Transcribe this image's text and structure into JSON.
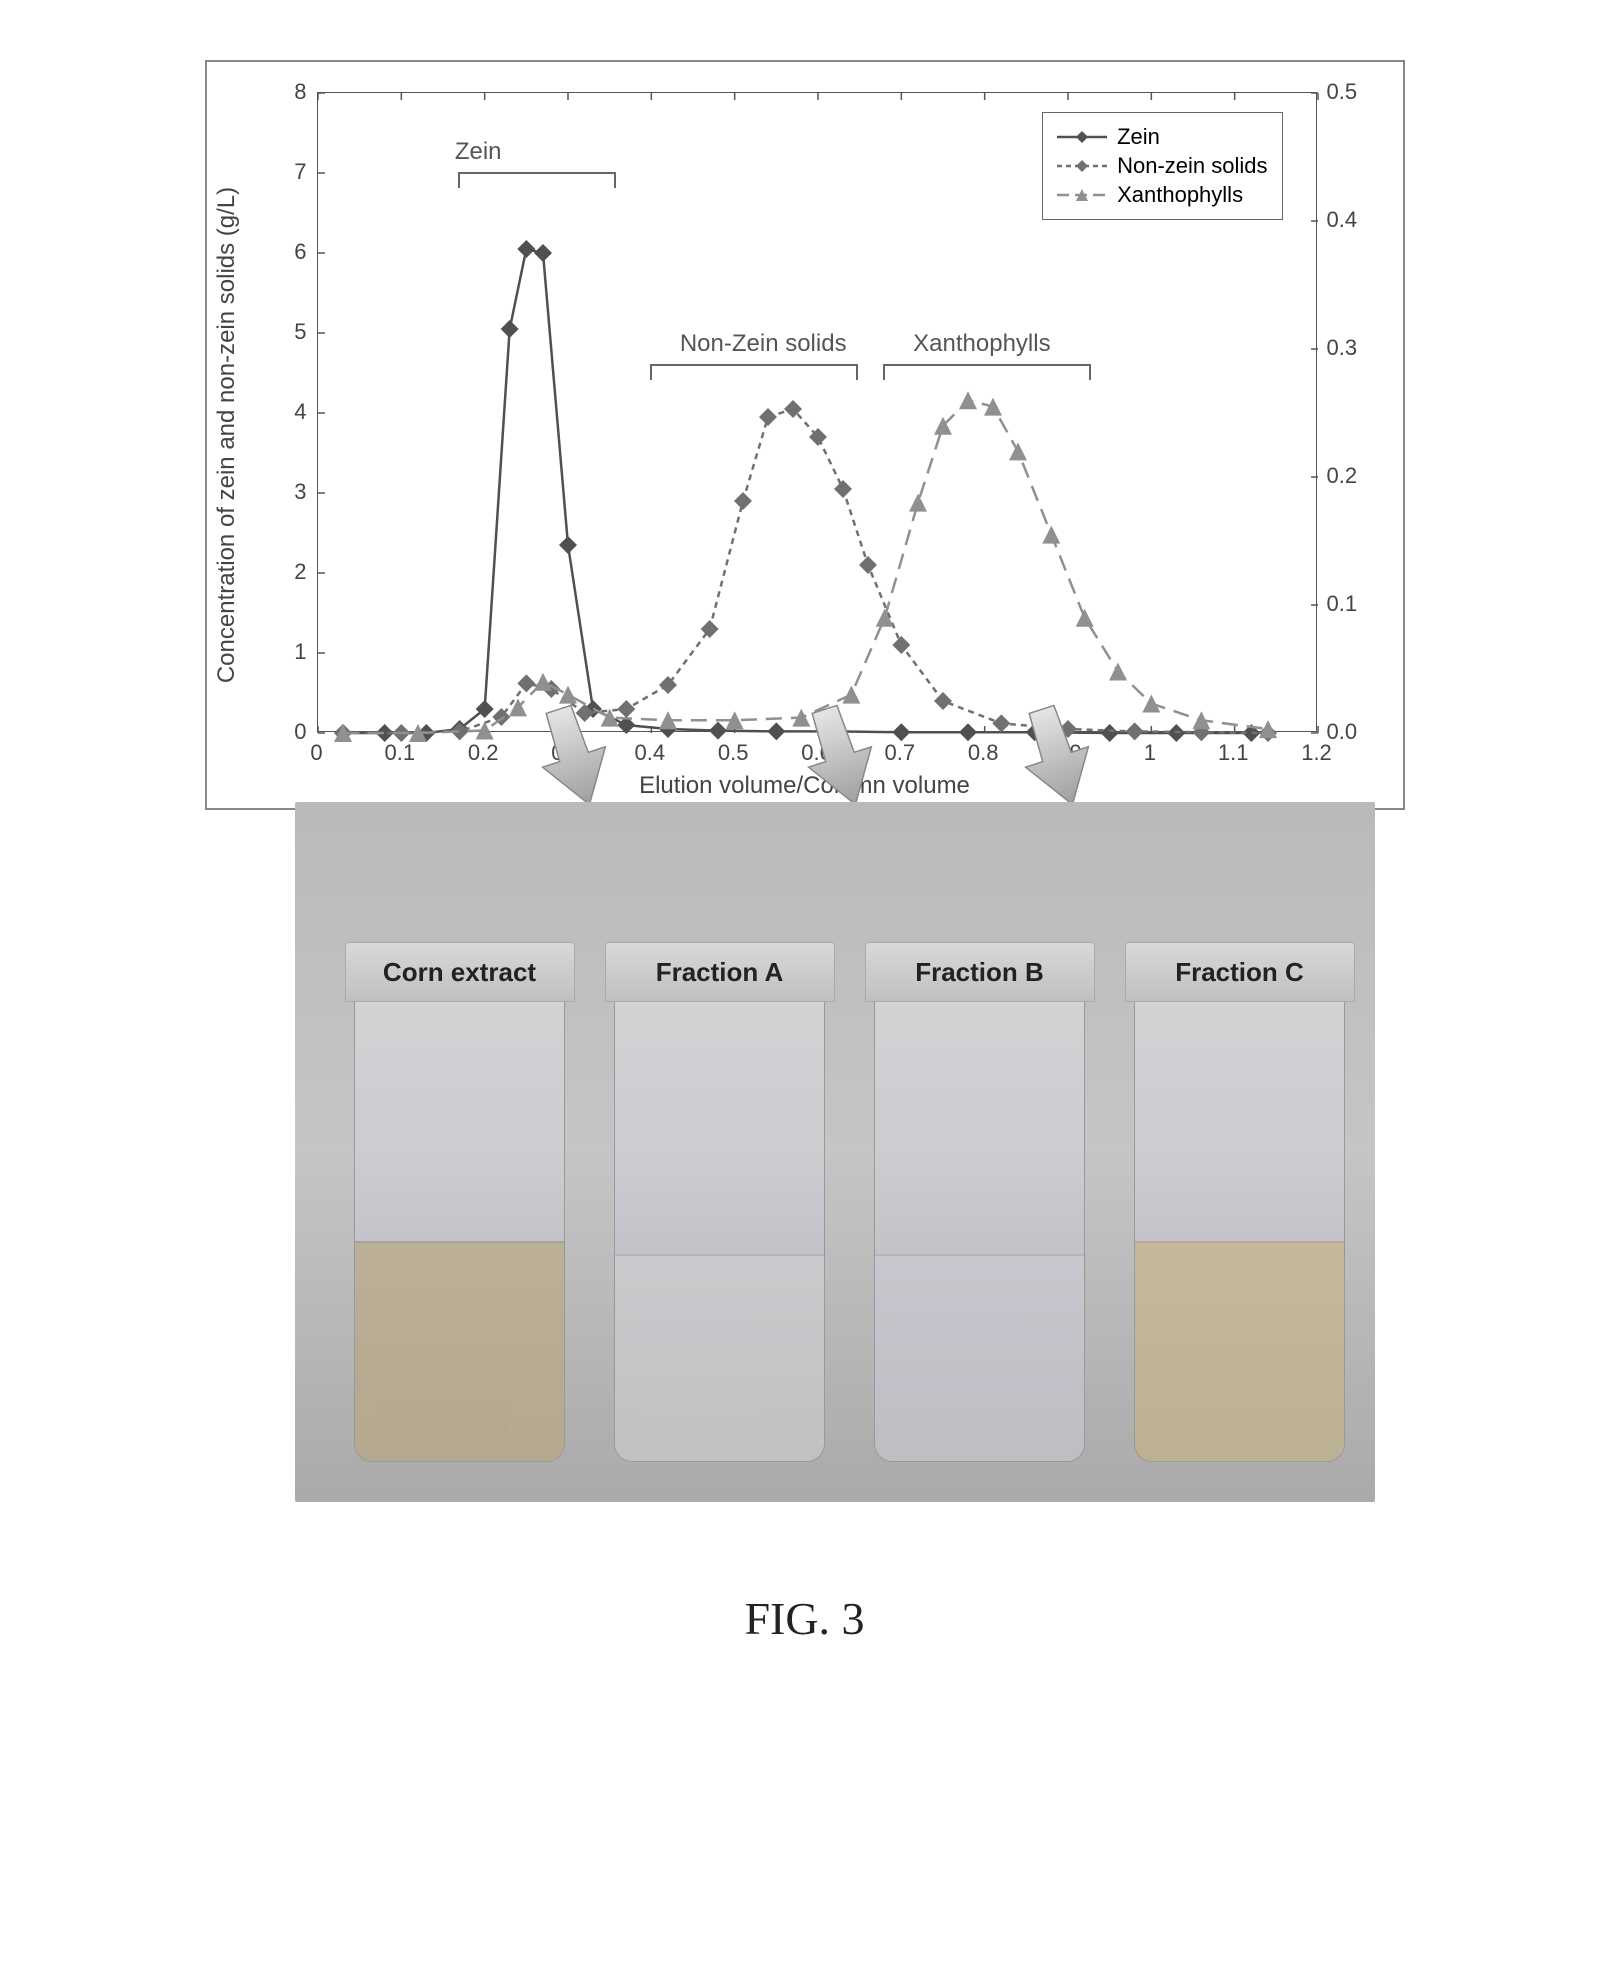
{
  "chart": {
    "type": "line",
    "xlabel": "Elution volume/Column volume",
    "ylabel_left": "Concentration of zein and non-zein solids (g/L)",
    "xlim": [
      0,
      1.2
    ],
    "ylim_left": [
      0,
      8
    ],
    "ylim_right": [
      0,
      0.5
    ],
    "xticks": [
      0,
      0.1,
      0.2,
      0.3,
      0.4,
      0.5,
      0.6,
      0.7,
      0.8,
      0.9,
      1,
      1.1,
      1.2
    ],
    "yticks_left": [
      0,
      1,
      2,
      3,
      4,
      5,
      6,
      7,
      8
    ],
    "yticks_right": [
      0.0,
      0.1,
      0.2,
      0.3,
      0.4,
      0.5
    ],
    "font_size_labels": 24,
    "font_size_ticks": 22,
    "background_color": "#ffffff",
    "border_color": "#555555",
    "series": [
      {
        "name": "Zein",
        "color": "#505050",
        "line_style": "solid",
        "line_width": 2.5,
        "marker": "diamond",
        "marker_size": 9,
        "axis": "left",
        "x": [
          0.03,
          0.08,
          0.13,
          0.17,
          0.2,
          0.23,
          0.25,
          0.27,
          0.3,
          0.33,
          0.37,
          0.42,
          0.48,
          0.55,
          0.62,
          0.7,
          0.78,
          0.86,
          0.95,
          1.03,
          1.12
        ],
        "y": [
          0.0,
          0.0,
          0.0,
          0.05,
          0.3,
          5.05,
          6.05,
          6.0,
          2.35,
          0.3,
          0.1,
          0.05,
          0.03,
          0.02,
          0.02,
          0.01,
          0.01,
          0.01,
          0.0,
          0.0,
          0.0
        ]
      },
      {
        "name": "Non-zein solids",
        "color": "#707070",
        "line_style": "dashed_short",
        "line_width": 2.5,
        "marker": "diamond",
        "marker_size": 9,
        "axis": "left",
        "x": [
          0.03,
          0.1,
          0.17,
          0.22,
          0.25,
          0.28,
          0.32,
          0.37,
          0.42,
          0.47,
          0.51,
          0.54,
          0.57,
          0.6,
          0.63,
          0.66,
          0.7,
          0.75,
          0.82,
          0.9,
          0.98,
          1.06,
          1.14
        ],
        "y": [
          0.0,
          0.0,
          0.02,
          0.2,
          0.62,
          0.55,
          0.25,
          0.3,
          0.6,
          1.3,
          2.9,
          3.95,
          4.05,
          3.7,
          3.05,
          2.1,
          1.1,
          0.4,
          0.12,
          0.05,
          0.02,
          0.01,
          0.0
        ]
      },
      {
        "name": "Xanthophylls",
        "color": "#909090",
        "line_style": "dashed_long",
        "line_width": 2.5,
        "marker": "triangle",
        "marker_size": 9,
        "axis": "right",
        "x": [
          0.03,
          0.12,
          0.2,
          0.24,
          0.27,
          0.3,
          0.35,
          0.42,
          0.5,
          0.58,
          0.64,
          0.68,
          0.72,
          0.75,
          0.78,
          0.81,
          0.84,
          0.88,
          0.92,
          0.96,
          1.0,
          1.06,
          1.14
        ],
        "y": [
          0.0,
          0.0,
          0.002,
          0.02,
          0.04,
          0.03,
          0.012,
          0.01,
          0.01,
          0.012,
          0.03,
          0.09,
          0.18,
          0.24,
          0.26,
          0.255,
          0.22,
          0.155,
          0.09,
          0.048,
          0.023,
          0.01,
          0.003
        ]
      }
    ],
    "legend": {
      "position": "top-right",
      "items": [
        "Zein",
        "Non-zein solids",
        "Xanthophylls"
      ],
      "border_color": "#666666"
    },
    "peak_annotations": [
      {
        "label": "Zein",
        "x_center": 0.25,
        "x_span": [
          0.17,
          0.36
        ],
        "y_text_at": 7.0
      },
      {
        "label": "Non-Zein solids",
        "x_center": 0.52,
        "x_span": [
          0.4,
          0.65
        ],
        "y_text_at": 4.6
      },
      {
        "label": "Xanthophylls",
        "x_center": 0.8,
        "x_span": [
          0.68,
          0.93
        ],
        "y_text_at": 4.6
      }
    ],
    "arrows": [
      {
        "from_x": 0.3,
        "to_target": "Fraction A",
        "color": "#b7b7b7"
      },
      {
        "from_x": 0.62,
        "to_target": "Fraction B",
        "color": "#b7b7b7"
      },
      {
        "from_x": 0.88,
        "to_target": "Fraction C",
        "color": "#b7b7b7"
      }
    ]
  },
  "photo": {
    "background_color": "#bcbcbc",
    "vials": [
      {
        "label": "Corn extract",
        "liquid_height_pct": 48,
        "liquid_color": "#b8a070",
        "liquid_opacity": 0.55
      },
      {
        "label": "Fraction A",
        "liquid_height_pct": 45,
        "liquid_color": "#d8d8d8",
        "liquid_opacity": 0.4
      },
      {
        "label": "Fraction B",
        "liquid_height_pct": 45,
        "liquid_color": "#cfcfda",
        "liquid_opacity": 0.4
      },
      {
        "label": "Fraction C",
        "liquid_height_pct": 48,
        "liquid_color": "#c8b070",
        "liquid_opacity": 0.5
      }
    ]
  },
  "caption": "FIG. 3"
}
